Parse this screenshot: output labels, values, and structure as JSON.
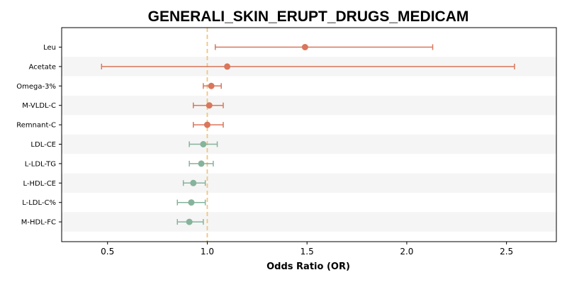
{
  "chart_data": {
    "type": "forest",
    "title": "GENERALI_SKIN_ERUPT_DRUGS_MEDICAM",
    "xlabel": "Odds Ratio (OR)",
    "ylabel": "",
    "xlim": [
      0.27,
      2.75
    ],
    "xticks": [
      0.5,
      1.0,
      1.5,
      2.0,
      2.5
    ],
    "xtick_labels": [
      "0.5",
      "1.0",
      "1.5",
      "2.0",
      "2.5"
    ],
    "reference_line": 1.0,
    "grid": false,
    "colors": {
      "positive": "#d9765b",
      "negative": "#86b39c",
      "reference": "#f2c57c",
      "band": "#f5f5f5"
    },
    "rows": [
      {
        "label": "Leu",
        "or": 1.49,
        "lo": 1.04,
        "hi": 2.13
      },
      {
        "label": "Acetate",
        "or": 1.1,
        "lo": 0.47,
        "hi": 2.54
      },
      {
        "label": "Omega-3%",
        "or": 1.02,
        "lo": 0.98,
        "hi": 1.07
      },
      {
        "label": "M-VLDL-C",
        "or": 1.01,
        "lo": 0.93,
        "hi": 1.08
      },
      {
        "label": "Remnant-C",
        "or": 1.0,
        "lo": 0.93,
        "hi": 1.08
      },
      {
        "label": "LDL-CE",
        "or": 0.98,
        "lo": 0.91,
        "hi": 1.05
      },
      {
        "label": "L-LDL-TG",
        "or": 0.97,
        "lo": 0.91,
        "hi": 1.03
      },
      {
        "label": "L-HDL-CE",
        "or": 0.93,
        "lo": 0.88,
        "hi": 0.99
      },
      {
        "label": "L-LDL-C%",
        "or": 0.92,
        "lo": 0.85,
        "hi": 0.99
      },
      {
        "label": "M-HDL-FC",
        "or": 0.91,
        "lo": 0.85,
        "hi": 0.98
      }
    ]
  }
}
